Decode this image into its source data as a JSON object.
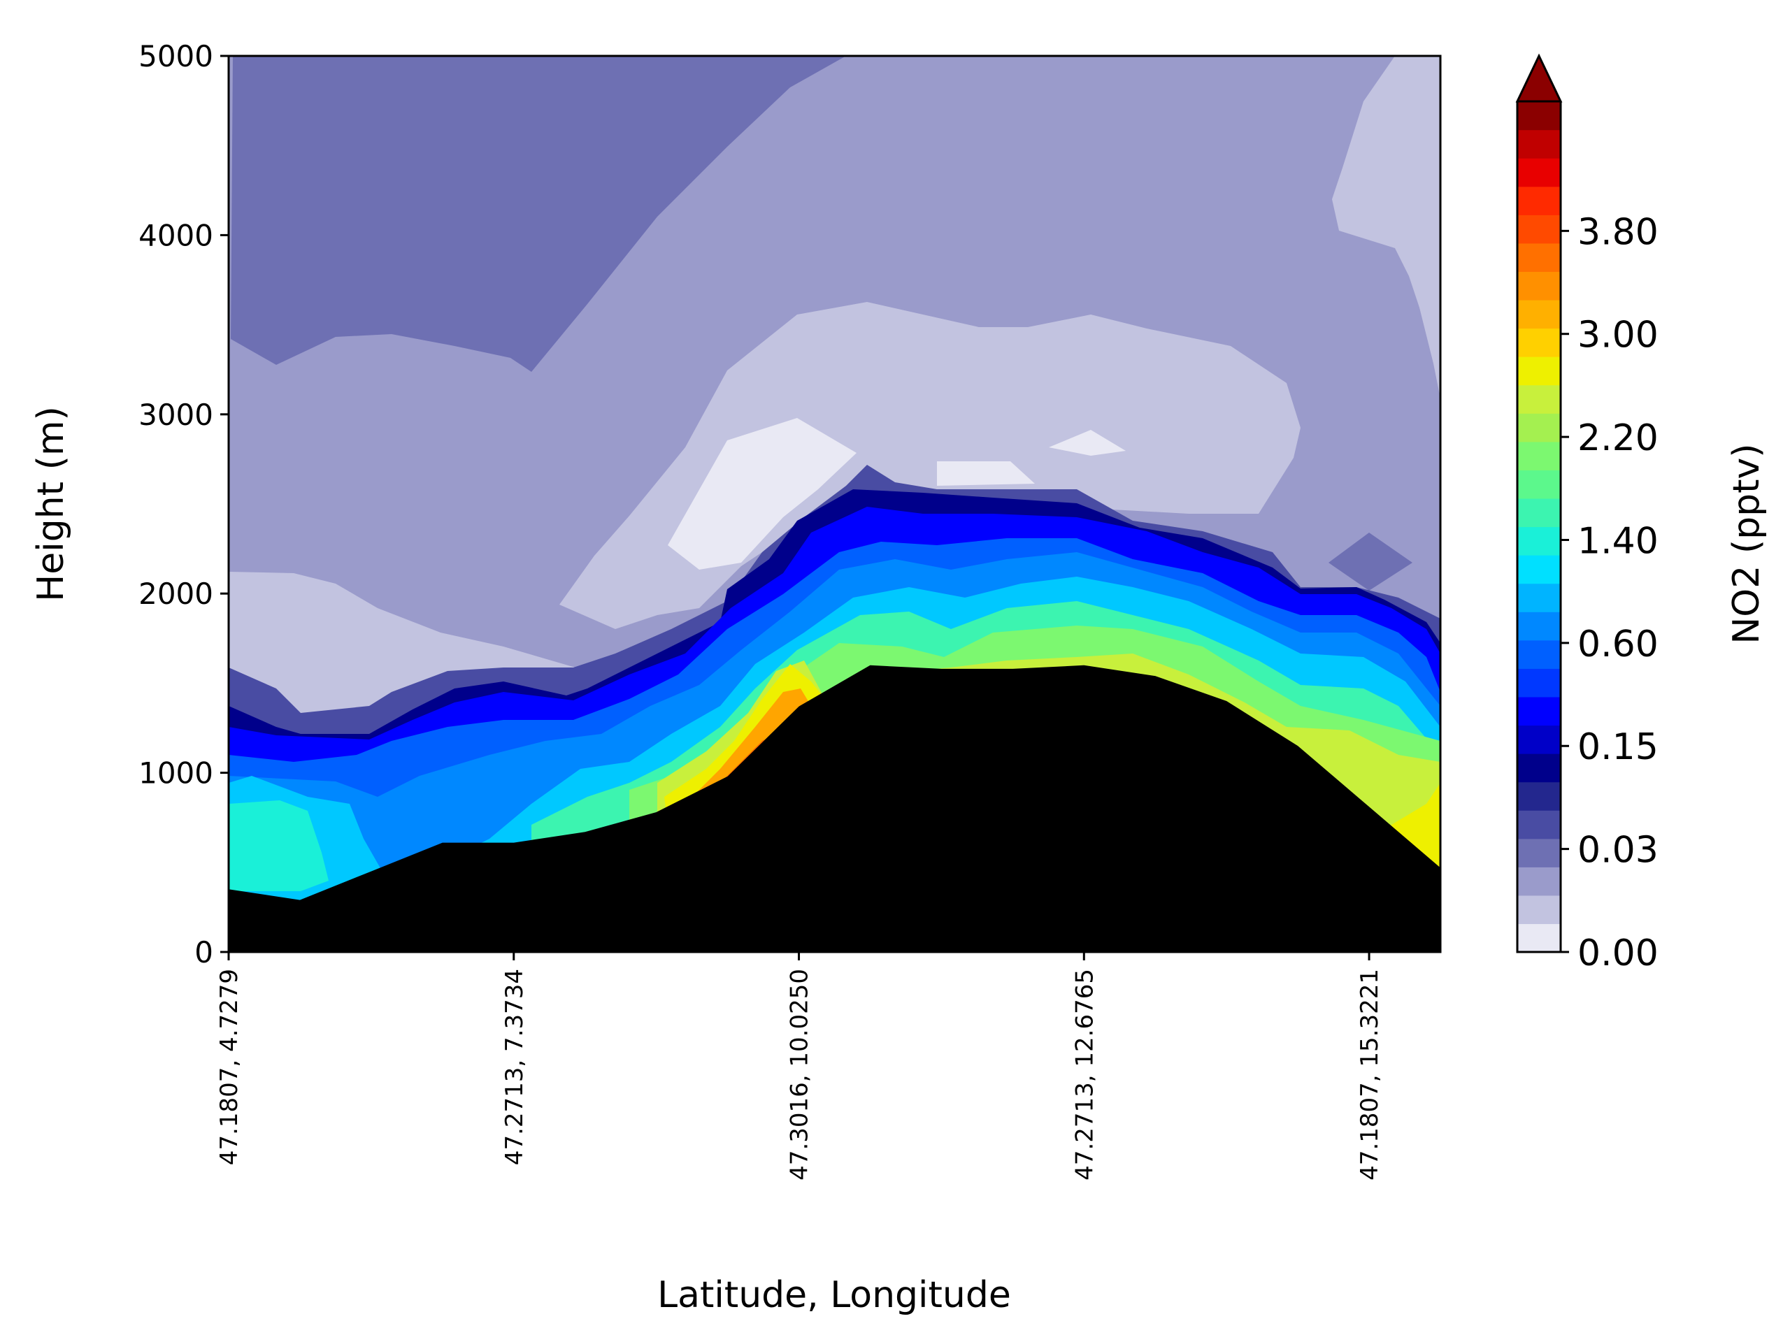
{
  "chart_data": {
    "type": "heatmap",
    "subtype": "filled-contour vertical cross-section",
    "title": "",
    "xlabel": "Latitude, Longitude",
    "ylabel": "Height (m)",
    "ylim": [
      0,
      5000
    ],
    "y_ticks": [
      "0",
      "1000",
      "2000",
      "3000",
      "4000",
      "5000"
    ],
    "x_ticks": [
      "47.1807, 4.7279",
      "47.2713, 7.3734",
      "47.3016, 10.0250",
      "47.2713, 12.6765",
      "47.1807, 15.3221"
    ],
    "x_tick_index": [
      0,
      4,
      8,
      12,
      16
    ],
    "x_point_count": 18,
    "grid": false,
    "terrain_height_m": [
      350,
      290,
      450,
      610,
      610,
      670,
      780,
      980,
      1370,
      1600,
      1580,
      1580,
      1600,
      1540,
      1400,
      1150,
      810,
      470
    ],
    "colorbar": {
      "label": "NO2 (pptv)",
      "ticks": [
        "0.00",
        "0.03",
        "0.15",
        "0.60",
        "1.40",
        "2.20",
        "3.00",
        "3.80"
      ],
      "tick_level_index": [
        0,
        3,
        6,
        9,
        12,
        15,
        18,
        21
      ],
      "extend": "max",
      "level_count": 26,
      "colors": [
        "#e9e9f4",
        "#c2c3e0",
        "#9a9bcb",
        "#6e70b3",
        "#494ca3",
        "#23278e",
        "#00008b",
        "#0000c8",
        "#0000ff",
        "#0038ff",
        "#0060ff",
        "#0088ff",
        "#00b4ff",
        "#00e0ff",
        "#1af0d8",
        "#3cf4b0",
        "#5cf88c",
        "#7cf870",
        "#a4f050",
        "#c8f03c",
        "#eef000",
        "#ffd000",
        "#ffb000",
        "#ff9000",
        "#ff7000",
        "#ff4a00",
        "#ff2a00",
        "#e80000",
        "#c00000",
        "#8b0000"
      ]
    },
    "regions": [
      {
        "level": "low-blue (~0.03)",
        "area": "upper free troposphere, western half above ~3500 m"
      },
      {
        "level": "lavender (~0.01-0.02)",
        "area": "most of free troposphere above boundary layer"
      },
      {
        "level": "light (~0.005)",
        "area": "cloud-like patch ~2000-3600 m over central Alps, and near 4000-5000 m at east edge"
      },
      {
        "level": "blue (0.15-0.6)",
        "area": "boundary-layer top following terrain, ~1200-2500 m"
      },
      {
        "level": "cyan-green (1.0-2.2)",
        "area": "boundary layer over high terrain and western lowlands"
      },
      {
        "level": "yellow-orange (2.6-3.6)",
        "area": "near-surface maximum on western slope (~800-1600 m) and eastern edge near 500-800 m"
      }
    ]
  }
}
